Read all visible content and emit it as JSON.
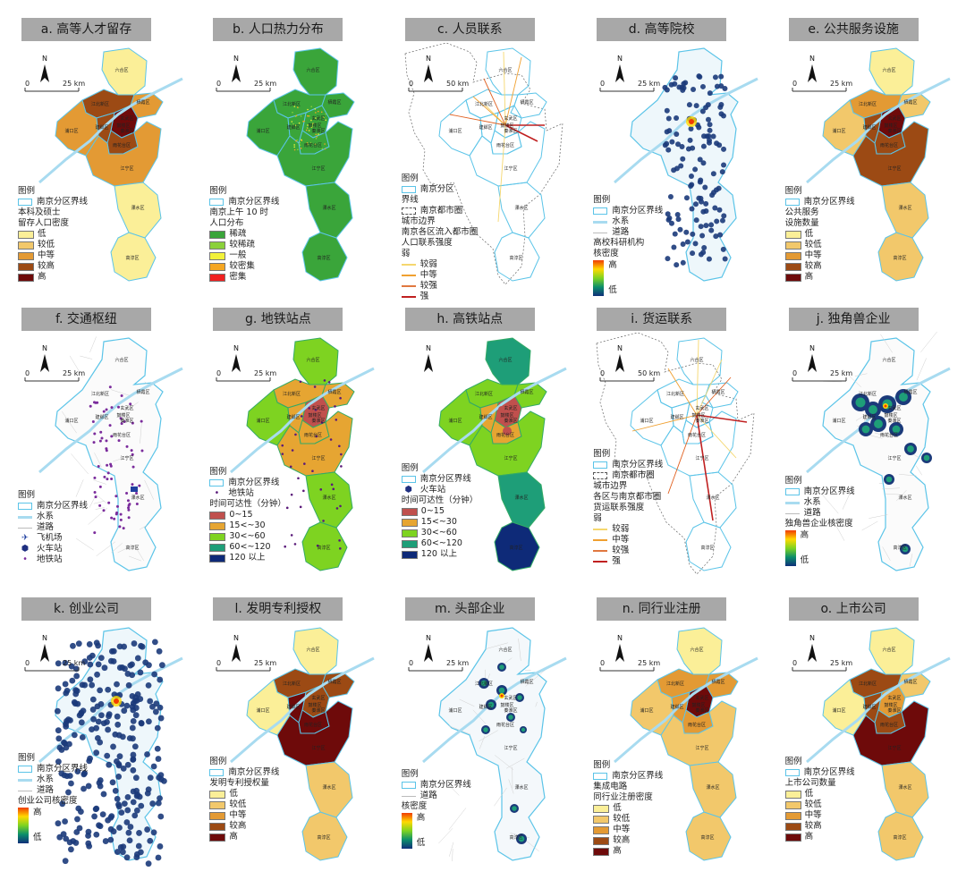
{
  "district_labels": [
    "六合区",
    "江北新区",
    "栖霞区",
    "浦口区",
    "玄武区",
    "鼓楼区",
    "秦淮区",
    "建邺区",
    "雨花台区",
    "江宁区",
    "溧水区",
    "高淳区"
  ],
  "palette": {
    "boundary": "#5bc4e8",
    "ramp5": [
      "#fbef98",
      "#f2c86b",
      "#e39a34",
      "#9c4a14",
      "#6e0a0a"
    ],
    "green": "#3aa53a",
    "heat": [
      "#0f2f7a",
      "#0b8e6b",
      "#7ed321",
      "#ffd900",
      "#f03c00"
    ],
    "access": [
      "#c0504d",
      "#e6a532",
      "#7ed321",
      "#1e9e78",
      "#0e2a78"
    ]
  },
  "panels": [
    {
      "id": "a",
      "title": "a. 高等人才留存",
      "style": "choro",
      "scale": "25 km",
      "fills": {
        "liuhe": 0,
        "jiangbei": 3,
        "qixia": 2,
        "pukou": 2,
        "core": 4,
        "jianye": 3,
        "yuhua": 3,
        "jiangning": 2,
        "lishui": 0,
        "gaochun": 0
      },
      "legend": {
        "head": "图例",
        "items": [
          {
            "k": "bd",
            "t": "南京分区界线"
          },
          {
            "k": "h",
            "t": "本科及硕士"
          },
          {
            "k": "h",
            "t": "留存人口密度"
          },
          {
            "k": "sw",
            "c": 0,
            "t": "低"
          },
          {
            "k": "sw",
            "c": 1,
            "t": "较低"
          },
          {
            "k": "sw",
            "c": 2,
            "t": "中等"
          },
          {
            "k": "sw",
            "c": 3,
            "t": "较高"
          },
          {
            "k": "sw",
            "c": 4,
            "t": "高"
          }
        ]
      }
    },
    {
      "id": "b",
      "title": "b. 人口热力分布",
      "style": "green",
      "scale": "25 km",
      "legend": {
        "head": "图例",
        "items": [
          {
            "k": "bd",
            "t": "南京分区界线"
          },
          {
            "k": "h",
            "t": "南京上午 10 时"
          },
          {
            "k": "h",
            "t": "人口分布"
          },
          {
            "k": "swc",
            "col": "#3aa53a",
            "t": "稀疏"
          },
          {
            "k": "swc",
            "col": "#8bd13a",
            "t": "较稀疏"
          },
          {
            "k": "swc",
            "col": "#f2f23a",
            "t": "一般"
          },
          {
            "k": "swc",
            "col": "#f5a623",
            "t": "较密集"
          },
          {
            "k": "swc",
            "col": "#f02020",
            "t": "密集"
          }
        ]
      }
    },
    {
      "id": "c",
      "title": "c. 人员联系",
      "style": "links",
      "scale": "50 km",
      "lineColors": [
        "#f5d76e",
        "#f0a030",
        "#e06020",
        "#c02020"
      ],
      "legend": {
        "head": "图例",
        "items": [
          {
            "k": "bd",
            "t": "南京分区"
          },
          {
            "k": "h",
            "t": "界线"
          },
          {
            "k": "dash",
            "t": "南京都市圈"
          },
          {
            "k": "h",
            "t": "城市边界"
          },
          {
            "k": "h",
            "t": "南京各区流入都市圈"
          },
          {
            "k": "h",
            "t": "人口联系强度"
          },
          {
            "k": "h",
            "t": "弱"
          },
          {
            "k": "ln",
            "col": "#f5d76e",
            "t": "较弱"
          },
          {
            "k": "ln",
            "col": "#f0a030",
            "t": "中等"
          },
          {
            "k": "ln",
            "col": "#e07840",
            "t": "较强"
          },
          {
            "k": "ln",
            "col": "#c02020",
            "t": "强"
          }
        ]
      }
    },
    {
      "id": "d",
      "title": "d. 高等院校",
      "style": "dots",
      "scale": "25 km",
      "dotsCount": 130,
      "legend": {
        "head": "图例",
        "items": [
          {
            "k": "bd",
            "t": "南京分区界线"
          },
          {
            "k": "wl",
            "t": "水系"
          },
          {
            "k": "gl",
            "t": "道路"
          },
          {
            "k": "h",
            "t": "高校科研机构"
          },
          {
            "k": "h",
            "t": "核密度"
          },
          {
            "k": "grad",
            "hi": "高",
            "lo": "低"
          }
        ]
      }
    },
    {
      "id": "e",
      "title": "e. 公共服务设施",
      "style": "choro",
      "scale": "25 km",
      "fills": {
        "liuhe": 0,
        "jiangbei": 2,
        "qixia": 1,
        "pukou": 1,
        "core": 4,
        "jianye": 3,
        "yuhua": 3,
        "jiangning": 3,
        "lishui": 1,
        "gaochun": 1
      },
      "legend": {
        "head": "图例",
        "items": [
          {
            "k": "bd",
            "t": "南京分区界线"
          },
          {
            "k": "h",
            "t": "公共服务"
          },
          {
            "k": "h",
            "t": "设施数量"
          },
          {
            "k": "sw",
            "c": 0,
            "t": "低"
          },
          {
            "k": "sw",
            "c": 1,
            "t": "较低"
          },
          {
            "k": "sw",
            "c": 2,
            "t": "中等"
          },
          {
            "k": "sw",
            "c": 3,
            "t": "较高"
          },
          {
            "k": "sw",
            "c": 4,
            "t": "高"
          }
        ]
      }
    },
    {
      "id": "f",
      "title": "f. 交通枢纽",
      "style": "transit",
      "scale": "25 km",
      "legend": {
        "head": "图例",
        "items": [
          {
            "k": "bd",
            "t": "南京分区界线"
          },
          {
            "k": "wl",
            "t": "水系"
          },
          {
            "k": "gl",
            "t": "道路"
          },
          {
            "k": "ic",
            "sym": "✈",
            "col": "#1f3fa0",
            "t": "飞机场"
          },
          {
            "k": "ic",
            "sym": "⬢",
            "col": "#1f2f80",
            "t": "火车站"
          },
          {
            "k": "ic",
            "sym": "•",
            "col": "#7b2c9c",
            "t": "地铁站"
          }
        ]
      }
    },
    {
      "id": "g",
      "title": "g. 地铁站点",
      "style": "access",
      "scale": "25 km",
      "legend": {
        "head": "图例",
        "items": [
          {
            "k": "bd",
            "t": "南京分区界线"
          },
          {
            "k": "ic",
            "sym": "•",
            "col": "#5a1a7a",
            "t": "地铁站"
          },
          {
            "k": "h",
            "t": "时间可达性（分钟）"
          },
          {
            "k": "swa",
            "c": 0,
            "t": "0~15"
          },
          {
            "k": "swa",
            "c": 1,
            "t": "15<~30"
          },
          {
            "k": "swa",
            "c": 2,
            "t": "30<~60"
          },
          {
            "k": "swa",
            "c": 3,
            "t": "60<~120"
          },
          {
            "k": "swa",
            "c": 4,
            "t": "120 以上"
          }
        ]
      }
    },
    {
      "id": "h",
      "title": "h. 高铁站点",
      "style": "access2",
      "scale": "",
      "legend": {
        "head": "图例",
        "items": [
          {
            "k": "bd",
            "t": "南京分区界线"
          },
          {
            "k": "ic",
            "sym": "⬢",
            "col": "#1f2f80",
            "t": "火车站"
          },
          {
            "k": "h",
            "t": "时间可达性（分钟）"
          },
          {
            "k": "swa",
            "c": 0,
            "t": "0~15"
          },
          {
            "k": "swa",
            "c": 1,
            "t": "15<~30"
          },
          {
            "k": "swa",
            "c": 2,
            "t": "30<~60"
          },
          {
            "k": "swa",
            "c": 3,
            "t": "60<~120"
          },
          {
            "k": "swa",
            "c": 4,
            "t": "120 以上"
          }
        ]
      }
    },
    {
      "id": "i",
      "title": "i. 货运联系",
      "style": "links2",
      "scale": "50 km",
      "legend": {
        "head": "图例",
        "items": [
          {
            "k": "bd",
            "t": "南京分区界线"
          },
          {
            "k": "dash",
            "t": "南京都市圈"
          },
          {
            "k": "h",
            "t": "城市边界"
          },
          {
            "k": "h",
            "t": "各区与南京都市圈"
          },
          {
            "k": "h",
            "t": "货运联系强度"
          },
          {
            "k": "h",
            "t": "弱"
          },
          {
            "k": "ln",
            "col": "#f5d76e",
            "t": "较弱"
          },
          {
            "k": "ln",
            "col": "#f0a030",
            "t": "中等"
          },
          {
            "k": "ln",
            "col": "#e07840",
            "t": "较强"
          },
          {
            "k": "ln",
            "col": "#c02020",
            "t": "强"
          }
        ]
      }
    },
    {
      "id": "j",
      "title": "j. 独角兽企业",
      "style": "blobs",
      "scale": "25 km",
      "legend": {
        "head": "图例",
        "items": [
          {
            "k": "bd",
            "t": "南京分区界线"
          },
          {
            "k": "wl",
            "t": "水系"
          },
          {
            "k": "gl",
            "t": "道路"
          },
          {
            "k": "h",
            "t": "独角兽企业核密度"
          },
          {
            "k": "grad",
            "hi": "高",
            "lo": "低"
          }
        ]
      }
    },
    {
      "id": "k",
      "title": "k. 创业公司",
      "style": "dots2",
      "scale": "25 km",
      "dotsCount": 260,
      "legend": {
        "head": "图例",
        "items": [
          {
            "k": "bd",
            "t": "南京分区界线"
          },
          {
            "k": "wl",
            "t": "水系"
          },
          {
            "k": "gl",
            "t": "道路"
          },
          {
            "k": "h",
            "t": "创业公司核密度"
          },
          {
            "k": "grad",
            "hi": "高",
            "lo": "低"
          }
        ]
      }
    },
    {
      "id": "l",
      "title": "l. 发明专利授权",
      "style": "choro",
      "scale": "25 km",
      "fills": {
        "liuhe": 0,
        "jiangbei": 3,
        "qixia": 3,
        "pukou": 0,
        "core": 3,
        "jianye": 4,
        "yuhua": 4,
        "jiangning": 4,
        "lishui": 1,
        "gaochun": 1
      },
      "legend": {
        "head": "图例",
        "items": [
          {
            "k": "bd",
            "t": "南京分区界线"
          },
          {
            "k": "h",
            "t": "发明专利授权量"
          },
          {
            "k": "sw",
            "c": 0,
            "t": "低"
          },
          {
            "k": "sw",
            "c": 1,
            "t": "较低"
          },
          {
            "k": "sw",
            "c": 2,
            "t": "中等"
          },
          {
            "k": "sw",
            "c": 3,
            "t": "较高"
          },
          {
            "k": "sw",
            "c": 4,
            "t": "高"
          }
        ]
      }
    },
    {
      "id": "m",
      "title": "m. 头部企业",
      "style": "blobs2",
      "scale": "25 km",
      "legend": {
        "head": "图例",
        "items": [
          {
            "k": "bd",
            "t": "南京分区界线"
          },
          {
            "k": "gl",
            "t": "道路"
          },
          {
            "k": "h",
            "t": "核密度"
          },
          {
            "k": "grad",
            "hi": "高",
            "lo": "低"
          }
        ]
      }
    },
    {
      "id": "n",
      "title": "n. 同行业注册",
      "style": "choro",
      "scale": "25 km",
      "fills": {
        "liuhe": 0,
        "jiangbei": 2,
        "qixia": 2,
        "pukou": 1,
        "core": 4,
        "jianye": 2,
        "yuhua": 2,
        "jiangning": 1,
        "lishui": 1,
        "gaochun": 1
      },
      "legend": {
        "head": "图例",
        "items": [
          {
            "k": "bd",
            "t": "南京分区界线"
          },
          {
            "k": "h",
            "t": "集成电路"
          },
          {
            "k": "h",
            "t": "同行业注册密度"
          },
          {
            "k": "sw",
            "c": 0,
            "t": "低"
          },
          {
            "k": "sw",
            "c": 1,
            "t": "较低"
          },
          {
            "k": "sw",
            "c": 2,
            "t": "中等"
          },
          {
            "k": "sw",
            "c": 3,
            "t": "较高"
          },
          {
            "k": "sw",
            "c": 4,
            "t": "高"
          }
        ]
      }
    },
    {
      "id": "o",
      "title": "o. 上市公司",
      "style": "choro",
      "scale": "25 km",
      "fills": {
        "liuhe": 0,
        "jiangbei": 3,
        "qixia": 1,
        "pukou": 0,
        "core": 2,
        "jianye": 3,
        "yuhua": 3,
        "jiangning": 4,
        "lishui": 1,
        "gaochun": 1
      },
      "legend": {
        "head": "图例",
        "items": [
          {
            "k": "bd",
            "t": "南京分区界线"
          },
          {
            "k": "h",
            "t": "上市公司数量"
          },
          {
            "k": "sw",
            "c": 0,
            "t": "低"
          },
          {
            "k": "sw",
            "c": 1,
            "t": "较低"
          },
          {
            "k": "sw",
            "c": 2,
            "t": "中等"
          },
          {
            "k": "sw",
            "c": 3,
            "t": "较高"
          },
          {
            "k": "sw",
            "c": 4,
            "t": "高"
          }
        ]
      }
    }
  ]
}
